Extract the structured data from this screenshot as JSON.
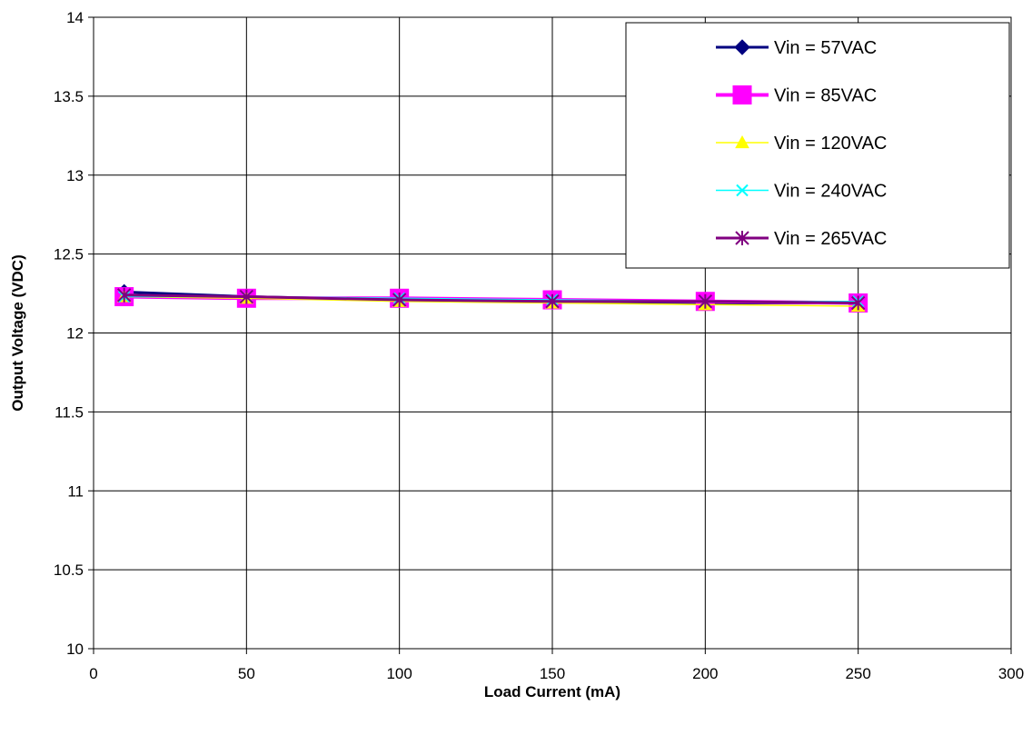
{
  "chart_data": {
    "type": "line",
    "title": "",
    "xlabel": "Load Current (mA)",
    "ylabel": "Output Voltage (VDC)",
    "xlim": [
      0,
      300
    ],
    "ylim": [
      10,
      14
    ],
    "x_ticks": [
      "0",
      "50",
      "100",
      "150",
      "200",
      "250",
      "300"
    ],
    "y_ticks": [
      "10",
      "10.5",
      "11",
      "11.5",
      "12",
      "12.5",
      "13",
      "13.5",
      "14"
    ],
    "grid": true,
    "legend_position": "top-right",
    "x": [
      10,
      50,
      100,
      150,
      200,
      250
    ],
    "series": [
      {
        "name": "Vin = 57VAC",
        "color": "#000080",
        "marker": "diamond",
        "values": [
          12.26,
          12.23,
          12.21,
          12.2,
          12.19,
          12.19
        ]
      },
      {
        "name": "Vin = 85VAC",
        "color": "#FF00FF",
        "marker": "square",
        "values": [
          12.23,
          12.22,
          12.22,
          12.21,
          12.2,
          12.19
        ]
      },
      {
        "name": "Vin = 120VAC",
        "color": "#FFFF00",
        "marker": "triangle",
        "values": [
          12.23,
          12.22,
          12.2,
          12.19,
          12.18,
          12.17
        ]
      },
      {
        "name": "Vin = 240VAC",
        "color": "#00FFFF",
        "marker": "x",
        "values": [
          12.23,
          12.23,
          12.22,
          12.21,
          12.2,
          12.2
        ]
      },
      {
        "name": "Vin = 265VAC",
        "color": "#800080",
        "marker": "star",
        "values": [
          12.24,
          12.23,
          12.21,
          12.2,
          12.2,
          12.19
        ]
      }
    ]
  }
}
